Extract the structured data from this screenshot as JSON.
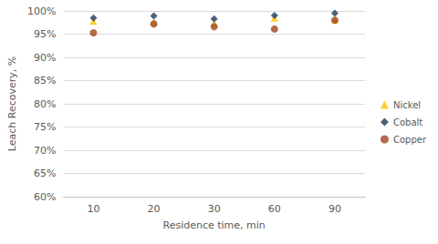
{
  "chart_data": {
    "type": "scatter",
    "x_label": "Residence time, min",
    "y_label": "Leach Recovery, %",
    "categories": [
      "10",
      "20",
      "30",
      "60",
      "90"
    ],
    "series": [
      {
        "name": "Nickel",
        "color": "#ffc000",
        "marker": "triangle",
        "values": [
          97.8,
          97.6,
          97.3,
          98.5,
          98.1
        ]
      },
      {
        "name": "Cobalt",
        "color": "#1f3a56",
        "marker": "diamond",
        "values": [
          98.5,
          98.9,
          98.3,
          99.0,
          99.5
        ]
      },
      {
        "name": "Copper",
        "color": "#a0461e",
        "marker": "circle",
        "values": [
          95.3,
          97.2,
          96.6,
          96.1,
          98.0
        ]
      }
    ],
    "ylim": [
      60,
      100
    ],
    "yticks": [
      {
        "value": 60,
        "label": "60%"
      },
      {
        "value": 65,
        "label": "65%"
      },
      {
        "value": 70,
        "label": "70%"
      },
      {
        "value": 75,
        "label": "75%"
      },
      {
        "value": 80,
        "label": "80%"
      },
      {
        "value": 85,
        "label": "85%"
      },
      {
        "value": 90,
        "label": "90%"
      },
      {
        "value": 95,
        "label": "95%"
      },
      {
        "value": 100,
        "label": "100%"
      }
    ],
    "grid": true,
    "legend": "right"
  }
}
